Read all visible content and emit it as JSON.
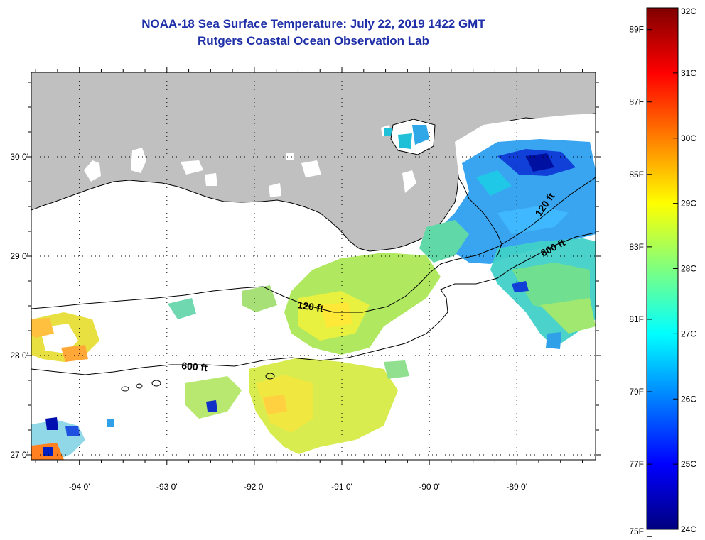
{
  "title": {
    "line1": "NOAA-18 Sea Surface Temperature:  July 22, 2019 1422 GMT",
    "line2": "Rutgers Coastal Ocean Observation Lab"
  },
  "map": {
    "lat_range": [
      26.95,
      30.85
    ],
    "lon_range": [
      -94.55,
      -88.1
    ],
    "lat_ticks": [
      {
        "value": 30,
        "label": "30 0'"
      },
      {
        "value": 29,
        "label": "29 0'"
      },
      {
        "value": 28,
        "label": "28 0'"
      },
      {
        "value": 27,
        "label": "27 0'"
      }
    ],
    "lon_ticks": [
      {
        "value": -94,
        "label": "-94 0'"
      },
      {
        "value": -93,
        "label": "-93 0'"
      },
      {
        "value": -92,
        "label": "-92 0'"
      },
      {
        "value": -91,
        "label": "-91 0'"
      },
      {
        "value": -90,
        "label": "-90 0'"
      },
      {
        "value": -89,
        "label": "-89 0'"
      }
    ],
    "land_color": "#c0c0c0",
    "contour_labels": [
      "120 ft",
      "600 ft",
      "120 ft",
      "600 ft"
    ]
  },
  "colorbar": {
    "celsius_labels": [
      "32C",
      "31C",
      "30C",
      "29C",
      "28C",
      "27C",
      "26C",
      "25C",
      "24C"
    ],
    "fahrenheit_labels": [
      "89F",
      "87F",
      "85F",
      "83F",
      "81F",
      "79F",
      "77F",
      "75F"
    ],
    "fahrenheit_values": [
      89,
      87,
      85,
      83,
      81,
      79,
      77,
      75
    ],
    "range_c": [
      24,
      32
    ],
    "stops": [
      "#00007f",
      "#0000ff",
      "#007fff",
      "#00ffff",
      "#7fff7f",
      "#ffff00",
      "#ff7f00",
      "#ff0000",
      "#7f0000"
    ]
  }
}
